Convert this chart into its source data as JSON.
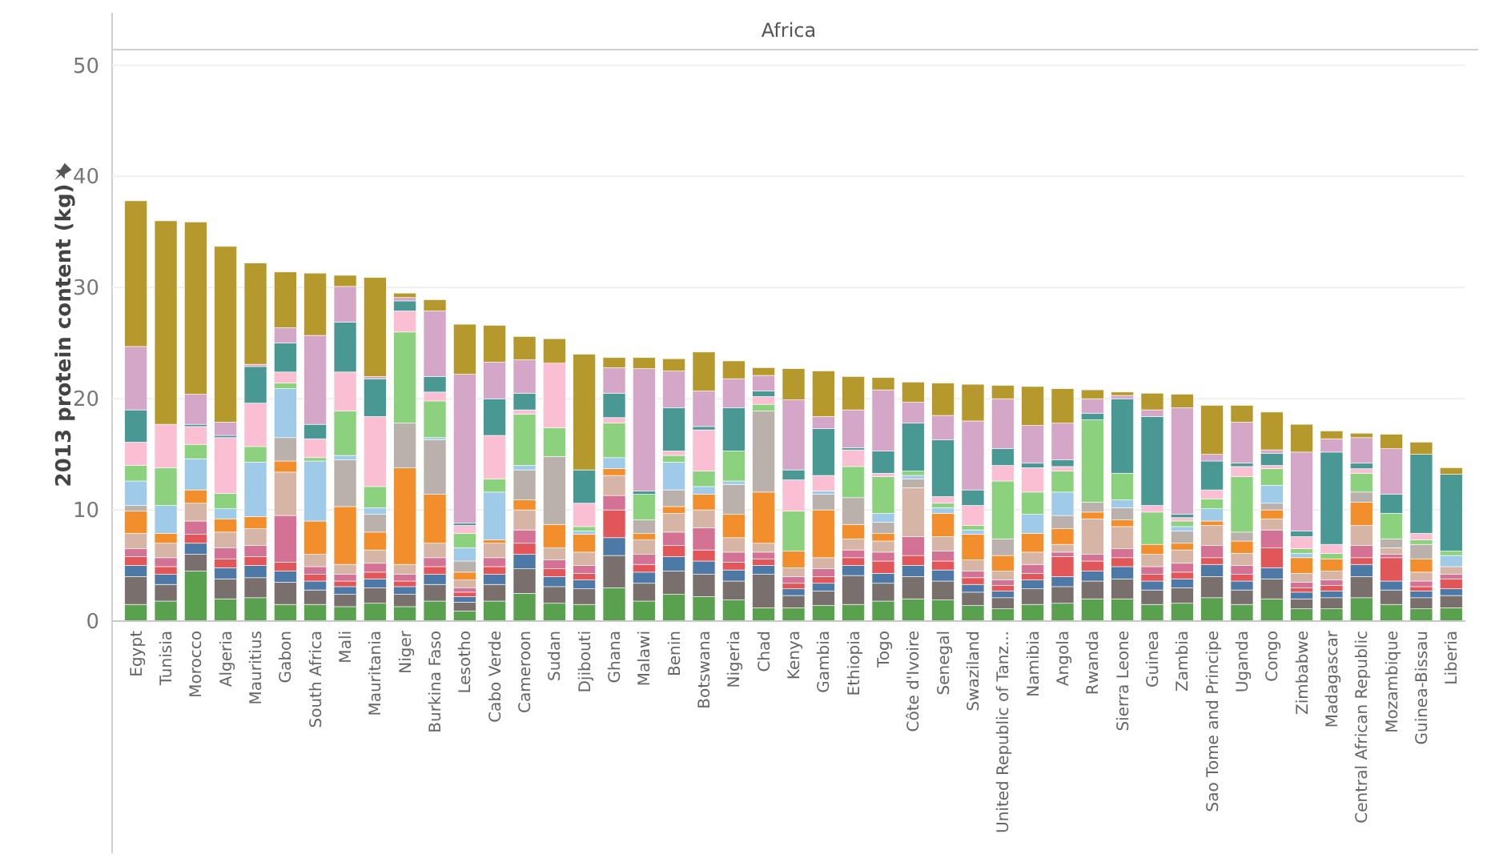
{
  "chart_data": {
    "type": "bar",
    "title": "Africa",
    "ylabel": "2013 protein content (kg)",
    "stacked": true,
    "grid": "y",
    "ylim": [
      0,
      51.4
    ],
    "yticks": [
      0,
      10,
      20,
      30,
      40,
      50
    ],
    "categories": [
      "Egypt",
      "Tunisia",
      "Morocco",
      "Algeria",
      "Mauritius",
      "Gabon",
      "South Africa",
      "Mali",
      "Mauritania",
      "Niger",
      "Burkina Faso",
      "Lesotho",
      "Cabo Verde",
      "Cameroon",
      "Sudan",
      "Djibouti",
      "Ghana",
      "Malawi",
      "Benin",
      "Botswana",
      "Nigeria",
      "Chad",
      "Kenya",
      "Gambia",
      "Ethiopia",
      "Togo",
      "Côte d'Ivoire",
      "Senegal",
      "Swaziland",
      "United Republic of Tanz...",
      "Namibia",
      "Angola",
      "Rwanda",
      "Sierra Leone",
      "Guinea",
      "Zambia",
      "Sao Tome and Principe",
      "Uganda",
      "Congo",
      "Zimbabwe",
      "Madagascar",
      "Central African Republic",
      "Mozambique",
      "Guinea-Bissau",
      "Liberia"
    ],
    "series": [
      {
        "color": "#59a14f",
        "values": [
          1.5,
          1.8,
          4.5,
          2.0,
          2.1,
          1.5,
          1.5,
          1.3,
          1.6,
          1.3,
          1.8,
          0.9,
          1.8,
          2.5,
          1.6,
          1.5,
          3.0,
          1.8,
          2.4,
          2.2,
          1.9,
          1.2,
          1.2,
          1.4,
          1.5,
          1.8,
          2.0,
          1.9,
          1.4,
          1.1,
          1.5,
          1.6,
          2.0,
          2.0,
          1.5,
          1.6,
          2.1,
          1.5,
          2.0,
          1.1,
          1.1,
          2.1,
          1.5,
          1.1,
          1.2
        ]
      },
      {
        "color": "#79706e",
        "values": [
          2.5,
          1.5,
          1.5,
          1.8,
          1.8,
          2.0,
          1.3,
          1.1,
          1.4,
          1.1,
          1.5,
          0.8,
          1.5,
          2.2,
          1.5,
          1.4,
          2.9,
          1.6,
          2.1,
          2.0,
          1.7,
          3.0,
          1.1,
          1.3,
          2.6,
          1.6,
          2.0,
          1.7,
          1.2,
          1.0,
          1.4,
          1.5,
          1.6,
          1.8,
          1.3,
          1.4,
          1.9,
          1.3,
          1.8,
          0.9,
          1.0,
          1.9,
          1.3,
          1.0,
          1.1
        ]
      },
      {
        "color": "#4e79a7",
        "values": [
          1.0,
          0.9,
          1.0,
          1.0,
          1.1,
          1.0,
          0.8,
          0.7,
          0.8,
          0.7,
          0.9,
          0.5,
          0.9,
          1.3,
          0.9,
          0.8,
          1.6,
          1.0,
          1.3,
          1.2,
          1.0,
          0.8,
          0.6,
          0.7,
          0.9,
          0.9,
          1.0,
          1.0,
          0.7,
          0.6,
          0.8,
          0.9,
          0.9,
          1.1,
          0.8,
          0.8,
          1.1,
          0.8,
          1.0,
          0.6,
          0.6,
          1.1,
          0.8,
          0.6,
          0.6
        ]
      },
      {
        "color": "#e15759",
        "values": [
          0.8,
          0.7,
          0.8,
          0.8,
          0.8,
          0.8,
          0.6,
          0.5,
          0.6,
          0.5,
          0.7,
          0.4,
          0.7,
          1.0,
          0.7,
          0.6,
          2.5,
          0.7,
          1.0,
          1.0,
          0.7,
          0.6,
          0.5,
          0.6,
          0.7,
          1.1,
          0.9,
          0.8,
          0.6,
          0.5,
          0.6,
          1.8,
          0.9,
          0.8,
          0.6,
          0.6,
          0.6,
          0.6,
          1.8,
          0.4,
          0.5,
          0.6,
          2.1,
          0.4,
          0.9
        ]
      },
      {
        "color": "#d37295",
        "values": [
          0.7,
          0.8,
          1.2,
          1.0,
          1.0,
          4.2,
          0.7,
          0.6,
          0.8,
          0.6,
          0.8,
          0.4,
          0.8,
          1.2,
          0.8,
          0.7,
          1.3,
          0.9,
          1.2,
          2.0,
          0.9,
          0.6,
          0.6,
          0.7,
          0.7,
          0.8,
          1.7,
          0.9,
          0.6,
          0.5,
          0.8,
          0.4,
          0.6,
          0.8,
          0.7,
          0.8,
          1.1,
          0.8,
          1.6,
          0.5,
          0.5,
          1.1,
          0.3,
          0.5,
          0.4
        ]
      },
      {
        "color": "#d7b5a6",
        "values": [
          1.4,
          1.3,
          1.6,
          1.4,
          1.5,
          3.9,
          1.1,
          0.9,
          1.2,
          0.9,
          1.3,
          0.7,
          1.3,
          1.8,
          1.1,
          1.2,
          1.8,
          1.3,
          1.7,
          1.6,
          1.3,
          0.8,
          0.8,
          1.0,
          1.0,
          1.0,
          4.4,
          1.3,
          1.0,
          0.8,
          1.1,
          0.7,
          3.2,
          2.0,
          1.1,
          1.2,
          1.8,
          1.1,
          1.0,
          0.8,
          0.8,
          1.8,
          0.6,
          0.8,
          0.7
        ]
      },
      {
        "color": "#f28e2b",
        "values": [
          2.0,
          0.9,
          1.2,
          1.2,
          1.1,
          1.0,
          3.0,
          5.2,
          1.6,
          8.7,
          4.4,
          0.7,
          0.3,
          0.9,
          2.1,
          1.6,
          0.6,
          0.6,
          0.6,
          1.4,
          2.1,
          4.6,
          1.5,
          4.3,
          1.3,
          0.7,
          0,
          2.1,
          2.3,
          1.4,
          1.7,
          1.4,
          0.6,
          0.6,
          0.9,
          0.6,
          0.4,
          1.1,
          0.8,
          1.4,
          1.1,
          2.1,
          0,
          1.2,
          0
        ]
      },
      {
        "color": "#bab0ac",
        "values": [
          0.5,
          0,
          0,
          0,
          0,
          2.1,
          0,
          4.2,
          1.6,
          4.0,
          4.9,
          1.0,
          0,
          2.7,
          6.1,
          0,
          0,
          1.2,
          1.5,
          0,
          2.7,
          7.3,
          0,
          1.4,
          2.4,
          1.0,
          0.8,
          0,
          0,
          1.5,
          0,
          1.2,
          0.9,
          1.1,
          0,
          1.1,
          0,
          0.8,
          0.6,
          0,
          0,
          0.9,
          0.8,
          1.3,
          0
        ]
      },
      {
        "color": "#a0cbe8",
        "values": [
          2.2,
          2.5,
          2.8,
          0.9,
          4.9,
          4.4,
          5.4,
          0.4,
          0.6,
          0,
          0.2,
          1.2,
          4.3,
          0.4,
          0,
          0.3,
          1.0,
          0,
          2.5,
          0.7,
          0.3,
          0,
          0,
          0.3,
          0,
          0.8,
          0.3,
          0.5,
          0.4,
          0,
          1.7,
          2.1,
          0,
          0.7,
          0,
          0.4,
          1.1,
          0,
          1.6,
          0.4,
          0,
          0,
          0,
          0,
          1.0
        ]
      },
      {
        "color": "#8cd17d",
        "values": [
          1.4,
          3.4,
          1.3,
          1.4,
          1.4,
          0.5,
          0.3,
          4.0,
          1.9,
          8.2,
          3.3,
          1.3,
          1.2,
          4.6,
          2.6,
          0.4,
          3.1,
          2.3,
          0.6,
          1.4,
          2.7,
          0.6,
          3.6,
          0,
          2.8,
          3.3,
          0.4,
          0.4,
          0.4,
          5.2,
          2.0,
          1.9,
          7.4,
          2.4,
          2.9,
          0.5,
          0.9,
          5.0,
          1.5,
          0.4,
          0.5,
          1.7,
          2.3,
          0.4,
          0.4
        ]
      },
      {
        "color": "#fabfd2",
        "values": [
          2.1,
          3.9,
          1.6,
          5.0,
          3.9,
          1.0,
          1.7,
          3.5,
          6.3,
          1.9,
          0.8,
          0.7,
          3.9,
          0.4,
          5.8,
          2.1,
          0.5,
          0,
          0.4,
          3.7,
          0,
          0.7,
          2.8,
          1.4,
          1.5,
          0.3,
          0,
          0.6,
          1.8,
          1.4,
          2.2,
          0.4,
          0,
          0,
          0.6,
          0.3,
          0.8,
          0.9,
          0.3,
          1.1,
          0.8,
          0.4,
          0,
          0.6,
          0
        ]
      },
      {
        "color": "#499894",
        "values": [
          2.9,
          0,
          0.2,
          0.2,
          3.3,
          2.6,
          1.3,
          4.5,
          3.4,
          0.9,
          1.4,
          0.2,
          3.3,
          1.5,
          0,
          3.0,
          2.2,
          0.3,
          3.9,
          0.3,
          3.9,
          0.5,
          0.9,
          4.2,
          0.2,
          2.0,
          4.3,
          5.1,
          1.4,
          1.5,
          0.4,
          0.6,
          0.6,
          6.7,
          8.0,
          0.3,
          2.6,
          0.3,
          1.1,
          0.5,
          8.3,
          0.5,
          1.7,
          7.1,
          6.9
        ]
      },
      {
        "color": "#d4a6c8",
        "values": [
          5.7,
          0,
          2.7,
          1.2,
          0.2,
          1.4,
          8.0,
          3.2,
          0.2,
          0.3,
          5.9,
          13.4,
          3.3,
          3.0,
          0,
          0,
          2.3,
          11.0,
          3.3,
          3.2,
          2.6,
          1.4,
          6.3,
          1.1,
          3.4,
          5.5,
          1.9,
          2.2,
          6.2,
          4.5,
          3.4,
          3.3,
          1.3,
          0.3,
          0.6,
          9.6,
          0.6,
          3.7,
          0.3,
          7.1,
          1.2,
          2.3,
          4.1,
          0,
          0
        ]
      },
      {
        "color": "#b6992d",
        "values": [
          13.1,
          18.3,
          15.5,
          15.8,
          9.1,
          5.0,
          5.6,
          1.0,
          8.9,
          0.4,
          1.0,
          4.5,
          3.3,
          2.1,
          2.2,
          10.4,
          0.9,
          1.0,
          1.1,
          3.5,
          1.6,
          0.7,
          2.8,
          4.1,
          3.0,
          1.1,
          1.8,
          2.9,
          3.3,
          1.2,
          3.5,
          3.1,
          0.8,
          0.3,
          1.5,
          1.2,
          4.4,
          1.5,
          3.4,
          2.5,
          0.7,
          0.4,
          1.3,
          1.1,
          0.6
        ]
      }
    ]
  }
}
